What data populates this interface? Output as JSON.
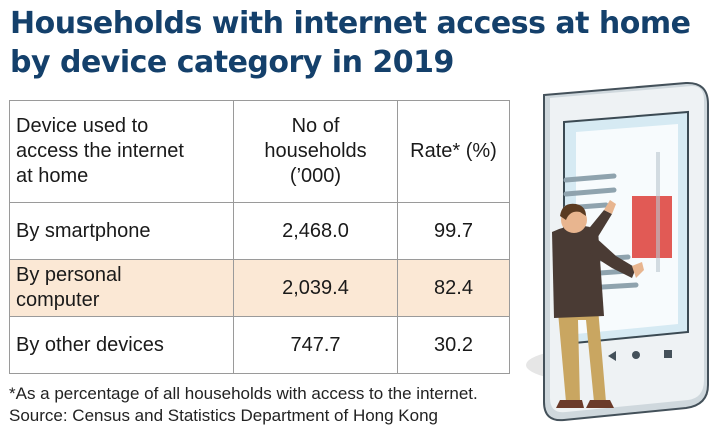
{
  "title": {
    "line1": "Households with internet access at home",
    "line2": "by device category in 2019"
  },
  "chart_data": {
    "type": "table",
    "columns": [
      "Device used to\naccess the internet\nat home",
      "No of\nhouseholds\n(’000)",
      "Rate* (%)"
    ],
    "rows": [
      {
        "device": "By smartphone",
        "households_000": "2,468.0",
        "rate_pct": "99.7"
      },
      {
        "device": "By personal\ncomputer",
        "households_000": "2,039.4",
        "rate_pct": "82.4"
      },
      {
        "device": "By other devices",
        "households_000": "747.7",
        "rate_pct": "30.2"
      }
    ]
  },
  "footnote": {
    "note": "*As a percentage of all households with access to the internet.",
    "source": "Source: Census and Statistics Department of Hong Kong"
  },
  "colors": {
    "title": "#14406b",
    "highlight_row": "#fbe8d5",
    "border": "#9a9a9a"
  },
  "illustration": {
    "name": "person-pointing-at-tablet-illustration"
  }
}
